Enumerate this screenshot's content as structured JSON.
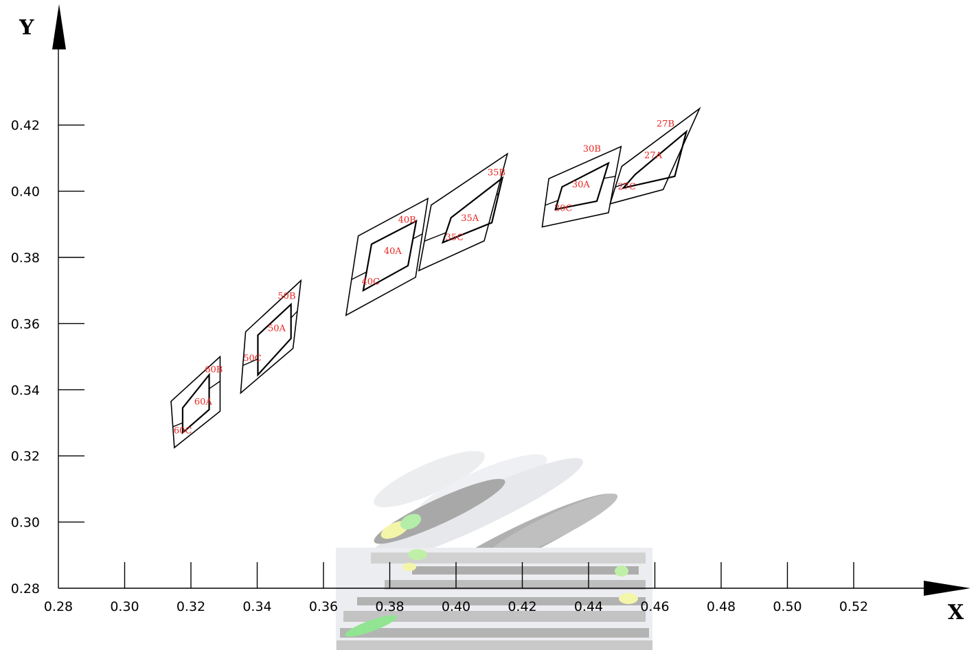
{
  "chart_data": {
    "type": "diagram",
    "title": "",
    "xlabel": "X",
    "ylabel": "Y",
    "xlim": [
      0.28,
      0.54
    ],
    "ylim": [
      0.28,
      0.43
    ],
    "x_ticks": [
      "0.28",
      "0.30",
      "0.32",
      "0.34",
      "0.36",
      "0.38",
      "0.40",
      "0.42",
      "0.44",
      "0.46",
      "0.48",
      "0.50",
      "0.52"
    ],
    "y_ticks": [
      "0.28",
      "0.30",
      "0.32",
      "0.34",
      "0.36",
      "0.38",
      "0.40",
      "0.42"
    ],
    "grid": false,
    "background_texture": "faded chromaticity locus (gray / green / yellow)",
    "colors": {
      "lines": "#000000",
      "labels": "#e8231f",
      "texture_gray": "#9a9a9a",
      "texture_green": "#7ee07e",
      "texture_yellow": "#f1f59a"
    },
    "groups": [
      {
        "name": "60",
        "outer": [
          [
            0.314,
            0.3365
          ],
          [
            0.3288,
            0.35
          ],
          [
            0.3288,
            0.3335
          ],
          [
            0.315,
            0.3225
          ]
        ],
        "inner": [
          [
            0.3175,
            0.3345
          ],
          [
            0.3255,
            0.3445
          ],
          [
            0.3255,
            0.334
          ],
          [
            0.3175,
            0.327
          ]
        ],
        "inner_label": "60A",
        "inner_label_pos": [
          0.321,
          0.3355
        ],
        "outer_label": "60B",
        "outer_label_pos": [
          0.3242,
          0.3452
        ],
        "lower_label": "60C",
        "lower_label_pos": [
          0.3148,
          0.3268
        ]
      },
      {
        "name": "50",
        "outer": [
          [
            0.3365,
            0.3575
          ],
          [
            0.3532,
            0.373
          ],
          [
            0.3508,
            0.3525
          ],
          [
            0.335,
            0.339
          ]
        ],
        "inner": [
          [
            0.3402,
            0.3565
          ],
          [
            0.3502,
            0.3658
          ],
          [
            0.3502,
            0.3555
          ],
          [
            0.3402,
            0.3445
          ]
        ],
        "inner_label": "50A",
        "inner_label_pos": [
          0.3432,
          0.3577
        ],
        "outer_label": "50B",
        "outer_label_pos": [
          0.3462,
          0.3675
        ],
        "lower_label": "50C",
        "lower_label_pos": [
          0.3358,
          0.3487
        ]
      },
      {
        "name": "40",
        "outer": [
          [
            0.3705,
            0.3865
          ],
          [
            0.3915,
            0.3978
          ],
          [
            0.3878,
            0.374
          ],
          [
            0.3668,
            0.3625
          ]
        ],
        "inner": [
          [
            0.3745,
            0.384
          ],
          [
            0.388,
            0.391
          ],
          [
            0.3855,
            0.3775
          ],
          [
            0.372,
            0.37
          ]
        ],
        "inner_label": "40A",
        "inner_label_pos": [
          0.3782,
          0.381
        ],
        "outer_label": "40B",
        "outer_label_pos": [
          0.3825,
          0.3905
        ],
        "lower_label": "40C",
        "lower_label_pos": [
          0.3715,
          0.3718
        ]
      },
      {
        "name": "35",
        "outer": [
          [
            0.3925,
            0.3958
          ],
          [
            0.4155,
            0.4113
          ],
          [
            0.4085,
            0.385
          ],
          [
            0.3888,
            0.376
          ]
        ],
        "inner": [
          [
            0.3985,
            0.392
          ],
          [
            0.414,
            0.404
          ],
          [
            0.4108,
            0.3905
          ],
          [
            0.396,
            0.3845
          ]
        ],
        "inner_label": "35A",
        "inner_label_pos": [
          0.4015,
          0.391
        ],
        "outer_label": "35B",
        "outer_label_pos": [
          0.4095,
          0.4048
        ],
        "lower_label": "35C",
        "lower_label_pos": [
          0.3968,
          0.3852
        ]
      },
      {
        "name": "30",
        "outer": [
          [
            0.428,
            0.4038
          ],
          [
            0.4498,
            0.4135
          ],
          [
            0.446,
            0.3935
          ],
          [
            0.426,
            0.3892
          ]
        ],
        "inner": [
          [
            0.432,
            0.4013
          ],
          [
            0.446,
            0.4085
          ],
          [
            0.4425,
            0.397
          ],
          [
            0.43,
            0.3945
          ]
        ],
        "inner_label": "30A",
        "inner_label_pos": [
          0.435,
          0.4012
        ],
        "outer_label": "30B",
        "outer_label_pos": [
          0.4383,
          0.412
        ],
        "lower_label": "30C",
        "lower_label_pos": [
          0.4296,
          0.394
        ]
      },
      {
        "name": "27",
        "outer": [
          [
            0.45,
            0.4075
          ],
          [
            0.4735,
            0.425
          ],
          [
            0.4625,
            0.4005
          ],
          [
            0.4465,
            0.3962
          ]
        ],
        "inner": [
          [
            0.454,
            0.405
          ],
          [
            0.4695,
            0.418
          ],
          [
            0.466,
            0.4045
          ],
          [
            0.4505,
            0.401
          ]
        ],
        "inner_label": "27A",
        "inner_label_pos": [
          0.4568,
          0.41
        ],
        "outer_label": "27B",
        "outer_label_pos": [
          0.4605,
          0.4195
        ],
        "lower_label": "27C",
        "lower_label_pos": [
          0.4488,
          0.4005
        ]
      }
    ]
  }
}
